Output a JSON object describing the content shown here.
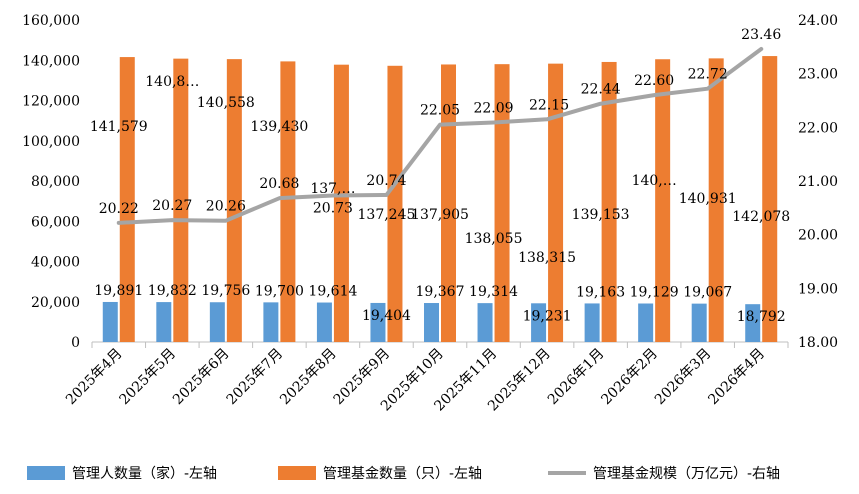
{
  "chart_data": {
    "type": "bar",
    "categories": [
      "2025年4月",
      "2025年5月",
      "2025年6月",
      "2025年7月",
      "2025年8月",
      "2025年9月",
      "2025年10月",
      "2025年11月",
      "2025年12月",
      "2026年1月",
      "2026年2月",
      "2026年3月",
      "2026年4月"
    ],
    "series": [
      {
        "name": "管理人数量（家）-左轴",
        "type": "bar",
        "axis": "left",
        "color": "#5B9BD5",
        "values": [
          19891,
          19832,
          19756,
          19700,
          19614,
          19404,
          19367,
          19314,
          19231,
          19163,
          19129,
          19067,
          18792
        ],
        "labels": [
          "19,891",
          "19,832",
          "19,756",
          "19,700",
          "19,614",
          "19,404",
          "19,367",
          "19,314",
          "19,231",
          "19,163",
          "19,129",
          "19,067",
          "18,792"
        ]
      },
      {
        "name": "管理基金数量（只）-左轴",
        "type": "bar",
        "axis": "left",
        "color": "#ED7D31",
        "values": [
          141579,
          140800,
          140558,
          139430,
          137800,
          137245,
          137905,
          138055,
          138315,
          139153,
          140500,
          140931,
          142078
        ],
        "labels": [
          "141,579",
          "140,8…",
          "140,558",
          "139,430",
          "137,…",
          "137,245",
          "137,905",
          "138,055",
          "138,315",
          "139,153",
          "140,…",
          "140,931",
          "142,078"
        ]
      },
      {
        "name": "管理基金规模（万亿元）-右轴",
        "type": "line",
        "axis": "right",
        "color": "#A5A5A5",
        "values": [
          20.22,
          20.27,
          20.26,
          20.68,
          20.73,
          20.74,
          22.05,
          22.09,
          22.15,
          22.44,
          22.6,
          22.72,
          23.46
        ],
        "labels": [
          "20.22",
          "20.27",
          "20.26",
          "20.68",
          "20.73",
          "20.74",
          "22.05",
          "22.09",
          "22.15",
          "22.44",
          "22.60",
          "22.72",
          "23.46"
        ]
      }
    ],
    "y_left": {
      "min": 0,
      "max": 160000,
      "ticks": [
        "0",
        "20,000",
        "40,000",
        "60,000",
        "80,000",
        "100,000",
        "120,000",
        "140,000",
        "160,000"
      ]
    },
    "y_right": {
      "min": 18,
      "max": 24,
      "ticks": [
        "18.00",
        "19.00",
        "20.00",
        "21.00",
        "22.00",
        "23.00",
        "24.00"
      ]
    },
    "grid": false,
    "legend_position": "bottom",
    "title": "",
    "xlabel": "",
    "ylabel": ""
  }
}
